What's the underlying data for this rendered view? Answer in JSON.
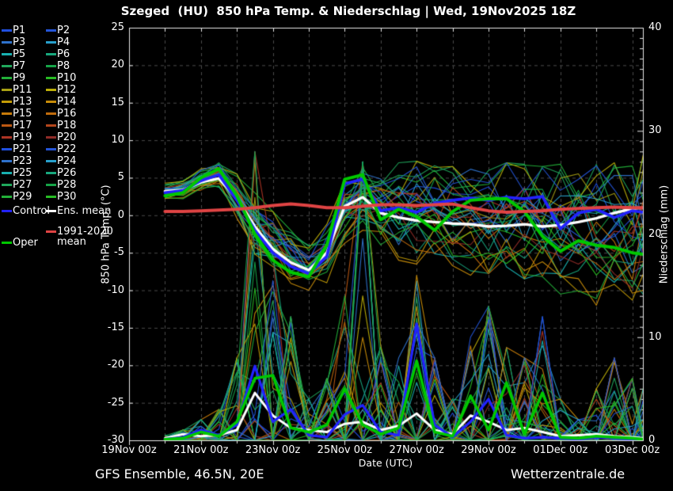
{
  "title": "Szeged  (HU)  850 hPa Temp. & Niederschlag | Wed, 19Nov2025 18Z",
  "footer": {
    "left": "GFS Ensemble, 46.5N, 20E",
    "right": "Wetterzentrale.de"
  },
  "colors": {
    "background": "#000000",
    "grid": "#4a4a4a",
    "frame": "#e8e8e8",
    "text": "#ffffff",
    "control": "#2222ff",
    "ens_mean": "#ffffff",
    "oper": "#00c800",
    "clim_mean": "#e04444"
  },
  "axes": {
    "left": {
      "label": "850 hPa Temp. (°C)",
      "ticks": [
        25,
        20,
        15,
        10,
        5,
        0,
        -5,
        -10,
        -15,
        -20,
        -25,
        -30
      ],
      "range": [
        -30,
        25
      ]
    },
    "right": {
      "label": "Niederschlag (mm)",
      "ticks": [
        40,
        30,
        20,
        10,
        0
      ],
      "range": [
        0,
        40
      ]
    },
    "x": {
      "label": "Date (UTC)",
      "tick_labels": [
        "19Nov 00z",
        "21Nov 00z",
        "23Nov 00z",
        "25Nov 00z",
        "27Nov 00z",
        "29Nov 00z",
        "01Dec 00z",
        "03Dec 00z"
      ],
      "tick_days": [
        0,
        2,
        4,
        6,
        8,
        10,
        12,
        14
      ],
      "days_span": [
        0,
        14.3
      ]
    }
  },
  "legend": {
    "member_labels": [
      "P1",
      "P2",
      "P3",
      "P4",
      "P5",
      "P6",
      "P7",
      "P8",
      "P9",
      "P10",
      "P11",
      "P12",
      "P13",
      "P14",
      "P15",
      "P16",
      "P17",
      "P18",
      "P19",
      "P20",
      "P21",
      "P22",
      "P23",
      "P24",
      "P25",
      "P26",
      "P27",
      "P28",
      "P29",
      "P30"
    ],
    "member_colors": [
      "#2050e0",
      "#2455d8",
      "#2e72cc",
      "#28a0cc",
      "#18b0b0",
      "#18a87e",
      "#20a85c",
      "#16a448",
      "#22b038",
      "#28bc24",
      "#a8a014",
      "#bcae08",
      "#c49c06",
      "#c88c08",
      "#c87c0a",
      "#c06c0c",
      "#bc5812",
      "#b4461c",
      "#ac3424",
      "#902c28",
      "#2050e0",
      "#2455d8",
      "#2e72cc",
      "#28a0cc",
      "#18b0b0",
      "#18a87e",
      "#20a85c",
      "#16a448",
      "#22b038",
      "#28bc24"
    ],
    "control_label": "Control",
    "ens_mean_label": "Ens. mean",
    "oper_label": "Oper",
    "clim_label_line1": "1991-2020",
    "clim_label_line2": "mean"
  },
  "chart_data": {
    "type": "line",
    "x_unit": "days since 19Nov 00z UTC",
    "x": [
      1,
      1.5,
      2,
      2.5,
      3,
      3.5,
      4,
      4.5,
      5,
      5.5,
      6,
      6.5,
      7,
      7.5,
      8,
      8.5,
      9,
      9.5,
      10,
      10.5,
      11,
      11.5,
      12,
      12.5,
      13,
      13.5,
      14,
      14.3
    ],
    "temp_range": [
      -30,
      25
    ],
    "precip_range": [
      0,
      40
    ],
    "grid": true,
    "series": [
      {
        "name": "Ens. mean",
        "axis": "temp",
        "color": "#ffffff",
        "width": 3.4,
        "values": [
          3.2,
          3.4,
          4.4,
          4.9,
          2.2,
          -1.5,
          -4.5,
          -6.3,
          -7.3,
          -5.0,
          1.2,
          2.4,
          0.3,
          -0.3,
          -0.7,
          -0.9,
          -1.1,
          -1.2,
          -1.5,
          -1.4,
          -1.2,
          -1.5,
          -1.3,
          -0.9,
          -0.4,
          0.3,
          0.9,
          1.0
        ]
      },
      {
        "name": "Control",
        "axis": "temp",
        "color": "#2222ff",
        "width": 3.6,
        "values": [
          3.0,
          3.3,
          4.6,
          5.4,
          2.0,
          -2.0,
          -5.0,
          -6.8,
          -7.8,
          -5.5,
          4.2,
          4.8,
          0.6,
          1.0,
          0.4,
          1.6,
          2.0,
          2.3,
          2.0,
          2.4,
          2.2,
          2.5,
          -1.8,
          0.3,
          0.8,
          -0.3,
          0.6,
          0.4
        ]
      },
      {
        "name": "Oper",
        "axis": "temp",
        "color": "#00c800",
        "width": 4.0,
        "values": [
          2.6,
          3.0,
          5.0,
          6.2,
          2.6,
          -2.5,
          -6.0,
          -7.6,
          -8.2,
          -4.0,
          4.8,
          5.4,
          -0.6,
          0.8,
          -0.2,
          -2.0,
          0.5,
          2.0,
          2.2,
          2.2,
          0.5,
          -2.8,
          -4.8,
          -3.4,
          -4.0,
          -4.3,
          -5.0,
          -5.2
        ]
      },
      {
        "name": "1991-2020 mean",
        "axis": "temp",
        "color": "#e04444",
        "width": 4.0,
        "values": [
          0.5,
          0.5,
          0.6,
          0.7,
          0.8,
          1.0,
          1.3,
          1.5,
          1.3,
          1.0,
          1.0,
          1.2,
          1.4,
          1.4,
          1.3,
          1.4,
          1.5,
          1.0,
          0.6,
          0.4,
          0.5,
          0.6,
          0.8,
          0.9,
          1.0,
          1.1,
          1.0,
          1.0
        ]
      },
      {
        "name": "Ens. mean precip",
        "axis": "precip",
        "color": "#ffffff",
        "width": 3.0,
        "values": [
          0.2,
          0.6,
          0.4,
          0.5,
          1.0,
          4.6,
          2.4,
          1.2,
          1.0,
          0.8,
          1.6,
          1.8,
          1.0,
          1.4,
          2.6,
          1.0,
          0.6,
          2.4,
          1.8,
          1.0,
          1.2,
          0.8,
          0.4,
          0.5,
          0.6,
          0.4,
          0.3,
          0.2
        ]
      },
      {
        "name": "Control precip",
        "axis": "precip",
        "color": "#2222ff",
        "width": 3.2,
        "values": [
          0.1,
          0.3,
          1.0,
          0.5,
          1.5,
          7.2,
          1.8,
          3.0,
          0.5,
          0.3,
          2.5,
          3.4,
          0.8,
          0.5,
          11.3,
          1.5,
          0.3,
          1.8,
          4.0,
          0.5,
          0.2,
          0.3,
          0.2,
          0.1,
          0.3,
          0.2,
          0.1,
          0.1
        ]
      },
      {
        "name": "Oper precip",
        "axis": "precip",
        "color": "#00c800",
        "width": 3.6,
        "values": [
          0.1,
          0.2,
          0.8,
          0.4,
          1.8,
          6.0,
          6.3,
          1.2,
          0.8,
          1.5,
          5.0,
          1.5,
          0.6,
          1.2,
          7.7,
          0.8,
          0.4,
          4.3,
          1.0,
          5.6,
          0.6,
          4.6,
          0.3,
          0.2,
          0.4,
          0.3,
          0.2,
          0.1
        ]
      }
    ],
    "member_envelope_temp": {
      "min": [
        2.0,
        2.2,
        3.2,
        3.6,
        -0.5,
        -5.5,
        -8.0,
        -9.5,
        -10.0,
        -9.0,
        -4.0,
        -2.0,
        -5.0,
        -6.0,
        -6.5,
        -7.0,
        -7.5,
        -8.0,
        -8.5,
        -9.0,
        -9.5,
        -10.0,
        -10.5,
        -11.0,
        -12.0,
        -12.5,
        -13.0,
        -13.5
      ],
      "max": [
        4.3,
        4.6,
        6.2,
        7.0,
        5.5,
        3.0,
        0.5,
        -2.0,
        -4.0,
        -0.5,
        4.5,
        6.5,
        6.8,
        7.0,
        7.2,
        6.8,
        6.5,
        6.8,
        6.5,
        7.0,
        6.8,
        6.5,
        6.8,
        7.0,
        6.8,
        7.0,
        7.5,
        8.0
      ]
    },
    "member_envelope_precip_max": [
      0.5,
      1,
      2,
      3,
      8,
      28,
      18,
      12,
      4,
      6,
      14,
      27,
      10,
      8,
      16,
      8,
      4,
      10,
      13,
      9,
      8,
      12,
      4,
      2,
      5,
      8,
      6,
      5
    ],
    "members": [
      {
        "name": "P1",
        "color": "#2050e0"
      },
      {
        "name": "P2",
        "color": "#2455d8"
      },
      {
        "name": "P3",
        "color": "#2e72cc"
      },
      {
        "name": "P4",
        "color": "#28a0cc"
      },
      {
        "name": "P5",
        "color": "#18b0b0"
      },
      {
        "name": "P6",
        "color": "#18a87e"
      },
      {
        "name": "P7",
        "color": "#20a85c"
      },
      {
        "name": "P8",
        "color": "#16a448"
      },
      {
        "name": "P9",
        "color": "#22b038"
      },
      {
        "name": "P10",
        "color": "#28bc24"
      },
      {
        "name": "P11",
        "color": "#a8a014"
      },
      {
        "name": "P12",
        "color": "#bcae08"
      },
      {
        "name": "P13",
        "color": "#c49c06"
      },
      {
        "name": "P14",
        "color": "#c88c08"
      },
      {
        "name": "P15",
        "color": "#c87c0a"
      },
      {
        "name": "P16",
        "color": "#c06c0c"
      },
      {
        "name": "P17",
        "color": "#bc5812"
      },
      {
        "name": "P18",
        "color": "#b4461c"
      },
      {
        "name": "P19",
        "color": "#ac3424"
      },
      {
        "name": "P20",
        "color": "#902c28"
      },
      {
        "name": "P21",
        "color": "#2050e0"
      },
      {
        "name": "P22",
        "color": "#2455d8"
      },
      {
        "name": "P23",
        "color": "#2e72cc"
      },
      {
        "name": "P24",
        "color": "#28a0cc"
      },
      {
        "name": "P25",
        "color": "#18b0b0"
      },
      {
        "name": "P26",
        "color": "#18a87e"
      },
      {
        "name": "P27",
        "color": "#20a85c"
      },
      {
        "name": "P28",
        "color": "#16a448"
      },
      {
        "name": "P29",
        "color": "#22b038"
      },
      {
        "name": "P30",
        "color": "#28bc24"
      }
    ]
  }
}
